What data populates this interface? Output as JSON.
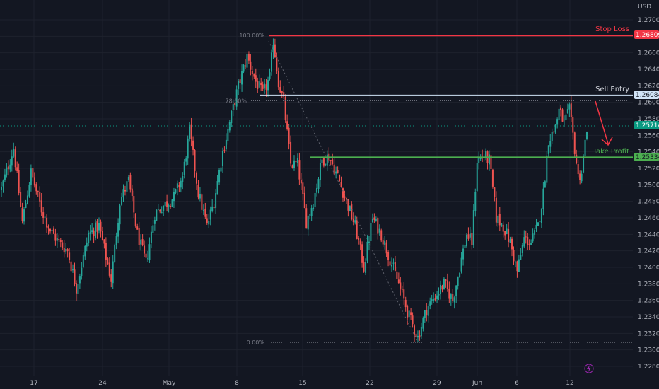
{
  "currency": "USD",
  "colors": {
    "background": "#131722",
    "grid": "#1e222d",
    "bull": "#26a69a",
    "bear": "#ef5350",
    "stop": "#f23645",
    "entry": "#d1e4f7",
    "take": "#4caf50",
    "current": "#089981",
    "arrow": "#f23645"
  },
  "chart_data": {
    "type": "candlestick",
    "x_ticks": [
      "17",
      "24",
      "May",
      "8",
      "15",
      "22",
      "29",
      "Jun",
      "6",
      "12"
    ],
    "y_ticks": [
      "1.27000",
      "1.26800",
      "1.26600",
      "1.26400",
      "1.26200",
      "1.26000",
      "1.25800",
      "1.25600",
      "1.25400",
      "1.25200",
      "1.25000",
      "1.24800",
      "1.24600",
      "1.24400",
      "1.24200",
      "1.24000",
      "1.23800",
      "1.23600",
      "1.23400",
      "1.23200",
      "1.23000",
      "1.22800"
    ],
    "ylim": [
      1.2273,
      1.2713
    ],
    "grid": true,
    "levels": {
      "stop_loss": {
        "label": "Stop Loss",
        "value": "1.26809"
      },
      "sell_entry": {
        "label": "Sell Entry",
        "value": "1.26084"
      },
      "take_profit": {
        "label": "Take Profit",
        "value": "1.25334"
      },
      "current_price": {
        "value": "1.25714"
      }
    },
    "fibonacci": [
      {
        "label": "100.00%",
        "value": 1.2681
      },
      {
        "label": "78.60%",
        "value": 1.2602
      },
      {
        "label": "0.00%",
        "value": 1.2309
      }
    ],
    "anchors": [
      [
        0,
        1.2495
      ],
      [
        7,
        1.2545
      ],
      [
        12,
        1.2455
      ],
      [
        17,
        1.2515
      ],
      [
        23,
        1.247
      ],
      [
        28,
        1.2445
      ],
      [
        33,
        1.243
      ],
      [
        38,
        1.242
      ],
      [
        43,
        1.2375
      ],
      [
        50,
        1.244
      ],
      [
        56,
        1.245
      ],
      [
        63,
        1.2385
      ],
      [
        68,
        1.248
      ],
      [
        73,
        1.2505
      ],
      [
        78,
        1.244
      ],
      [
        83,
        1.2405
      ],
      [
        88,
        1.2465
      ],
      [
        93,
        1.2475
      ],
      [
        99,
        1.2485
      ],
      [
        104,
        1.251
      ],
      [
        108,
        1.2565
      ],
      [
        113,
        1.249
      ],
      [
        118,
        1.245
      ],
      [
        122,
        1.248
      ],
      [
        127,
        1.254
      ],
      [
        131,
        1.2575
      ],
      [
        136,
        1.262
      ],
      [
        141,
        1.2655
      ],
      [
        146,
        1.2625
      ],
      [
        150,
        1.261
      ],
      [
        154,
        1.263
      ],
      [
        156,
        1.2675
      ],
      [
        159,
        1.2625
      ],
      [
        162,
        1.26
      ],
      [
        166,
        1.2525
      ],
      [
        170,
        1.2525
      ],
      [
        175,
        1.2455
      ],
      [
        179,
        1.248
      ],
      [
        184,
        1.253
      ],
      [
        188,
        1.2535
      ],
      [
        193,
        1.251
      ],
      [
        198,
        1.248
      ],
      [
        203,
        1.245
      ],
      [
        208,
        1.24
      ],
      [
        213,
        1.246
      ],
      [
        218,
        1.244
      ],
      [
        223,
        1.241
      ],
      [
        228,
        1.238
      ],
      [
        234,
        1.234
      ],
      [
        239,
        1.2315
      ],
      [
        244,
        1.235
      ],
      [
        249,
        1.2365
      ],
      [
        254,
        1.238
      ],
      [
        259,
        1.236
      ],
      [
        263,
        1.24
      ],
      [
        267,
        1.244
      ],
      [
        270,
        1.243
      ],
      [
        273,
        1.253
      ],
      [
        277,
        1.2535
      ],
      [
        280,
        1.253
      ],
      [
        284,
        1.246
      ],
      [
        288,
        1.245
      ],
      [
        292,
        1.243
      ],
      [
        296,
        1.2395
      ],
      [
        300,
        1.2435
      ],
      [
        304,
        1.243
      ],
      [
        308,
        1.245
      ],
      [
        311,
        1.249
      ],
      [
        314,
        1.2555
      ],
      [
        317,
        1.2565
      ],
      [
        320,
        1.259
      ],
      [
        323,
        1.2575
      ],
      [
        326,
        1.259
      ],
      [
        328,
        1.256
      ],
      [
        331,
        1.251
      ],
      [
        333,
        1.2515
      ],
      [
        336,
        1.257
      ]
    ]
  }
}
